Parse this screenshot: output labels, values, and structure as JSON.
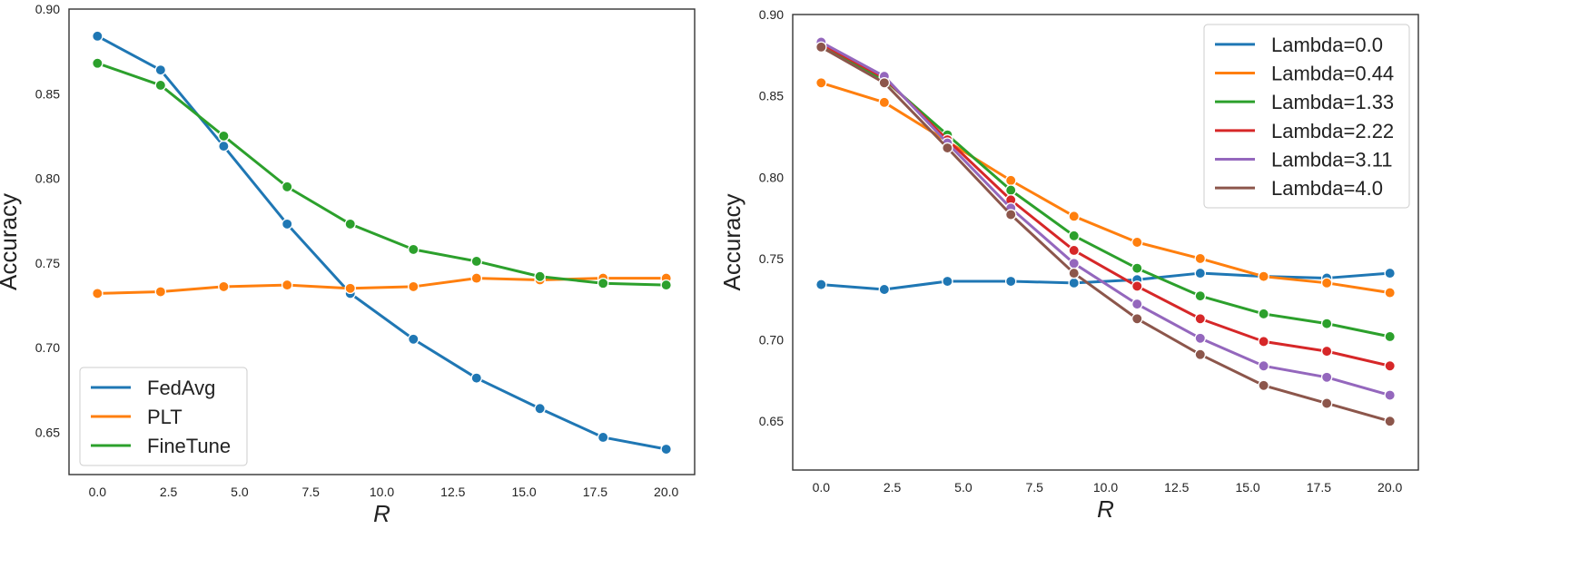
{
  "chart_data": [
    {
      "type": "line",
      "title": "",
      "xlabel": "R",
      "ylabel": "Accuracy",
      "xlim": [
        -1.0,
        21.0
      ],
      "ylim": [
        0.625,
        0.9
      ],
      "xticks": [
        0.0,
        2.5,
        5.0,
        7.5,
        10.0,
        12.5,
        15.0,
        17.5,
        20.0
      ],
      "xtick_labels": [
        "0.0",
        "2.5",
        "5.0",
        "7.5",
        "10.0",
        "12.5",
        "15.0",
        "17.5",
        "20.0"
      ],
      "yticks": [
        0.65,
        0.7,
        0.75,
        0.8,
        0.85,
        0.9
      ],
      "ytick_labels": [
        "0.65",
        "0.70",
        "0.75",
        "0.80",
        "0.85",
        "0.90"
      ],
      "grid": false,
      "legend_position": "lower-left",
      "x": [
        0.0,
        2.22,
        4.44,
        6.67,
        8.89,
        11.11,
        13.33,
        15.56,
        17.78,
        20.0
      ],
      "series": [
        {
          "name": "FedAvg",
          "color": "#1f77b4",
          "values": [
            0.884,
            0.864,
            0.819,
            0.773,
            0.732,
            0.705,
            0.682,
            0.664,
            0.647,
            0.64
          ]
        },
        {
          "name": "PLT",
          "color": "#ff7f0e",
          "values": [
            0.732,
            0.733,
            0.736,
            0.737,
            0.735,
            0.736,
            0.741,
            0.74,
            0.741,
            0.741
          ]
        },
        {
          "name": "FineTune",
          "color": "#2ca02c",
          "values": [
            0.868,
            0.855,
            0.825,
            0.795,
            0.773,
            0.758,
            0.751,
            0.742,
            0.738,
            0.737
          ]
        }
      ]
    },
    {
      "type": "line",
      "title": "",
      "xlabel": "R",
      "ylabel": "Accuracy",
      "xlim": [
        -1.0,
        21.0
      ],
      "ylim": [
        0.62,
        0.9
      ],
      "xticks": [
        0.0,
        2.5,
        5.0,
        7.5,
        10.0,
        12.5,
        15.0,
        17.5,
        20.0
      ],
      "xtick_labels": [
        "0.0",
        "2.5",
        "5.0",
        "7.5",
        "10.0",
        "12.5",
        "15.0",
        "17.5",
        "20.0"
      ],
      "yticks": [
        0.65,
        0.7,
        0.75,
        0.8,
        0.85,
        0.9
      ],
      "ytick_labels": [
        "0.65",
        "0.70",
        "0.75",
        "0.80",
        "0.85",
        "0.90"
      ],
      "grid": false,
      "legend_position": "upper-right",
      "x": [
        0.0,
        2.22,
        4.44,
        6.67,
        8.89,
        11.11,
        13.33,
        15.56,
        17.78,
        20.0
      ],
      "series": [
        {
          "name": "Lambda=0.0",
          "color": "#1f77b4",
          "values": [
            0.734,
            0.731,
            0.736,
            0.736,
            0.735,
            0.737,
            0.741,
            0.739,
            0.738,
            0.741
          ]
        },
        {
          "name": "Lambda=0.44",
          "color": "#ff7f0e",
          "values": [
            0.858,
            0.846,
            0.822,
            0.798,
            0.776,
            0.76,
            0.75,
            0.739,
            0.735,
            0.729
          ]
        },
        {
          "name": "Lambda=1.33",
          "color": "#2ca02c",
          "values": [
            0.88,
            0.86,
            0.826,
            0.792,
            0.764,
            0.744,
            0.727,
            0.716,
            0.71,
            0.702
          ]
        },
        {
          "name": "Lambda=2.22",
          "color": "#d62728",
          "values": [
            0.882,
            0.861,
            0.823,
            0.786,
            0.755,
            0.733,
            0.713,
            0.699,
            0.693,
            0.684
          ]
        },
        {
          "name": "Lambda=3.11",
          "color": "#9467bd",
          "values": [
            0.883,
            0.862,
            0.821,
            0.781,
            0.747,
            0.722,
            0.701,
            0.684,
            0.677,
            0.666
          ]
        },
        {
          "name": "Lambda=4.0",
          "color": "#8c564b",
          "values": [
            0.88,
            0.858,
            0.818,
            0.777,
            0.741,
            0.713,
            0.691,
            0.672,
            0.661,
            0.65
          ]
        }
      ]
    }
  ]
}
